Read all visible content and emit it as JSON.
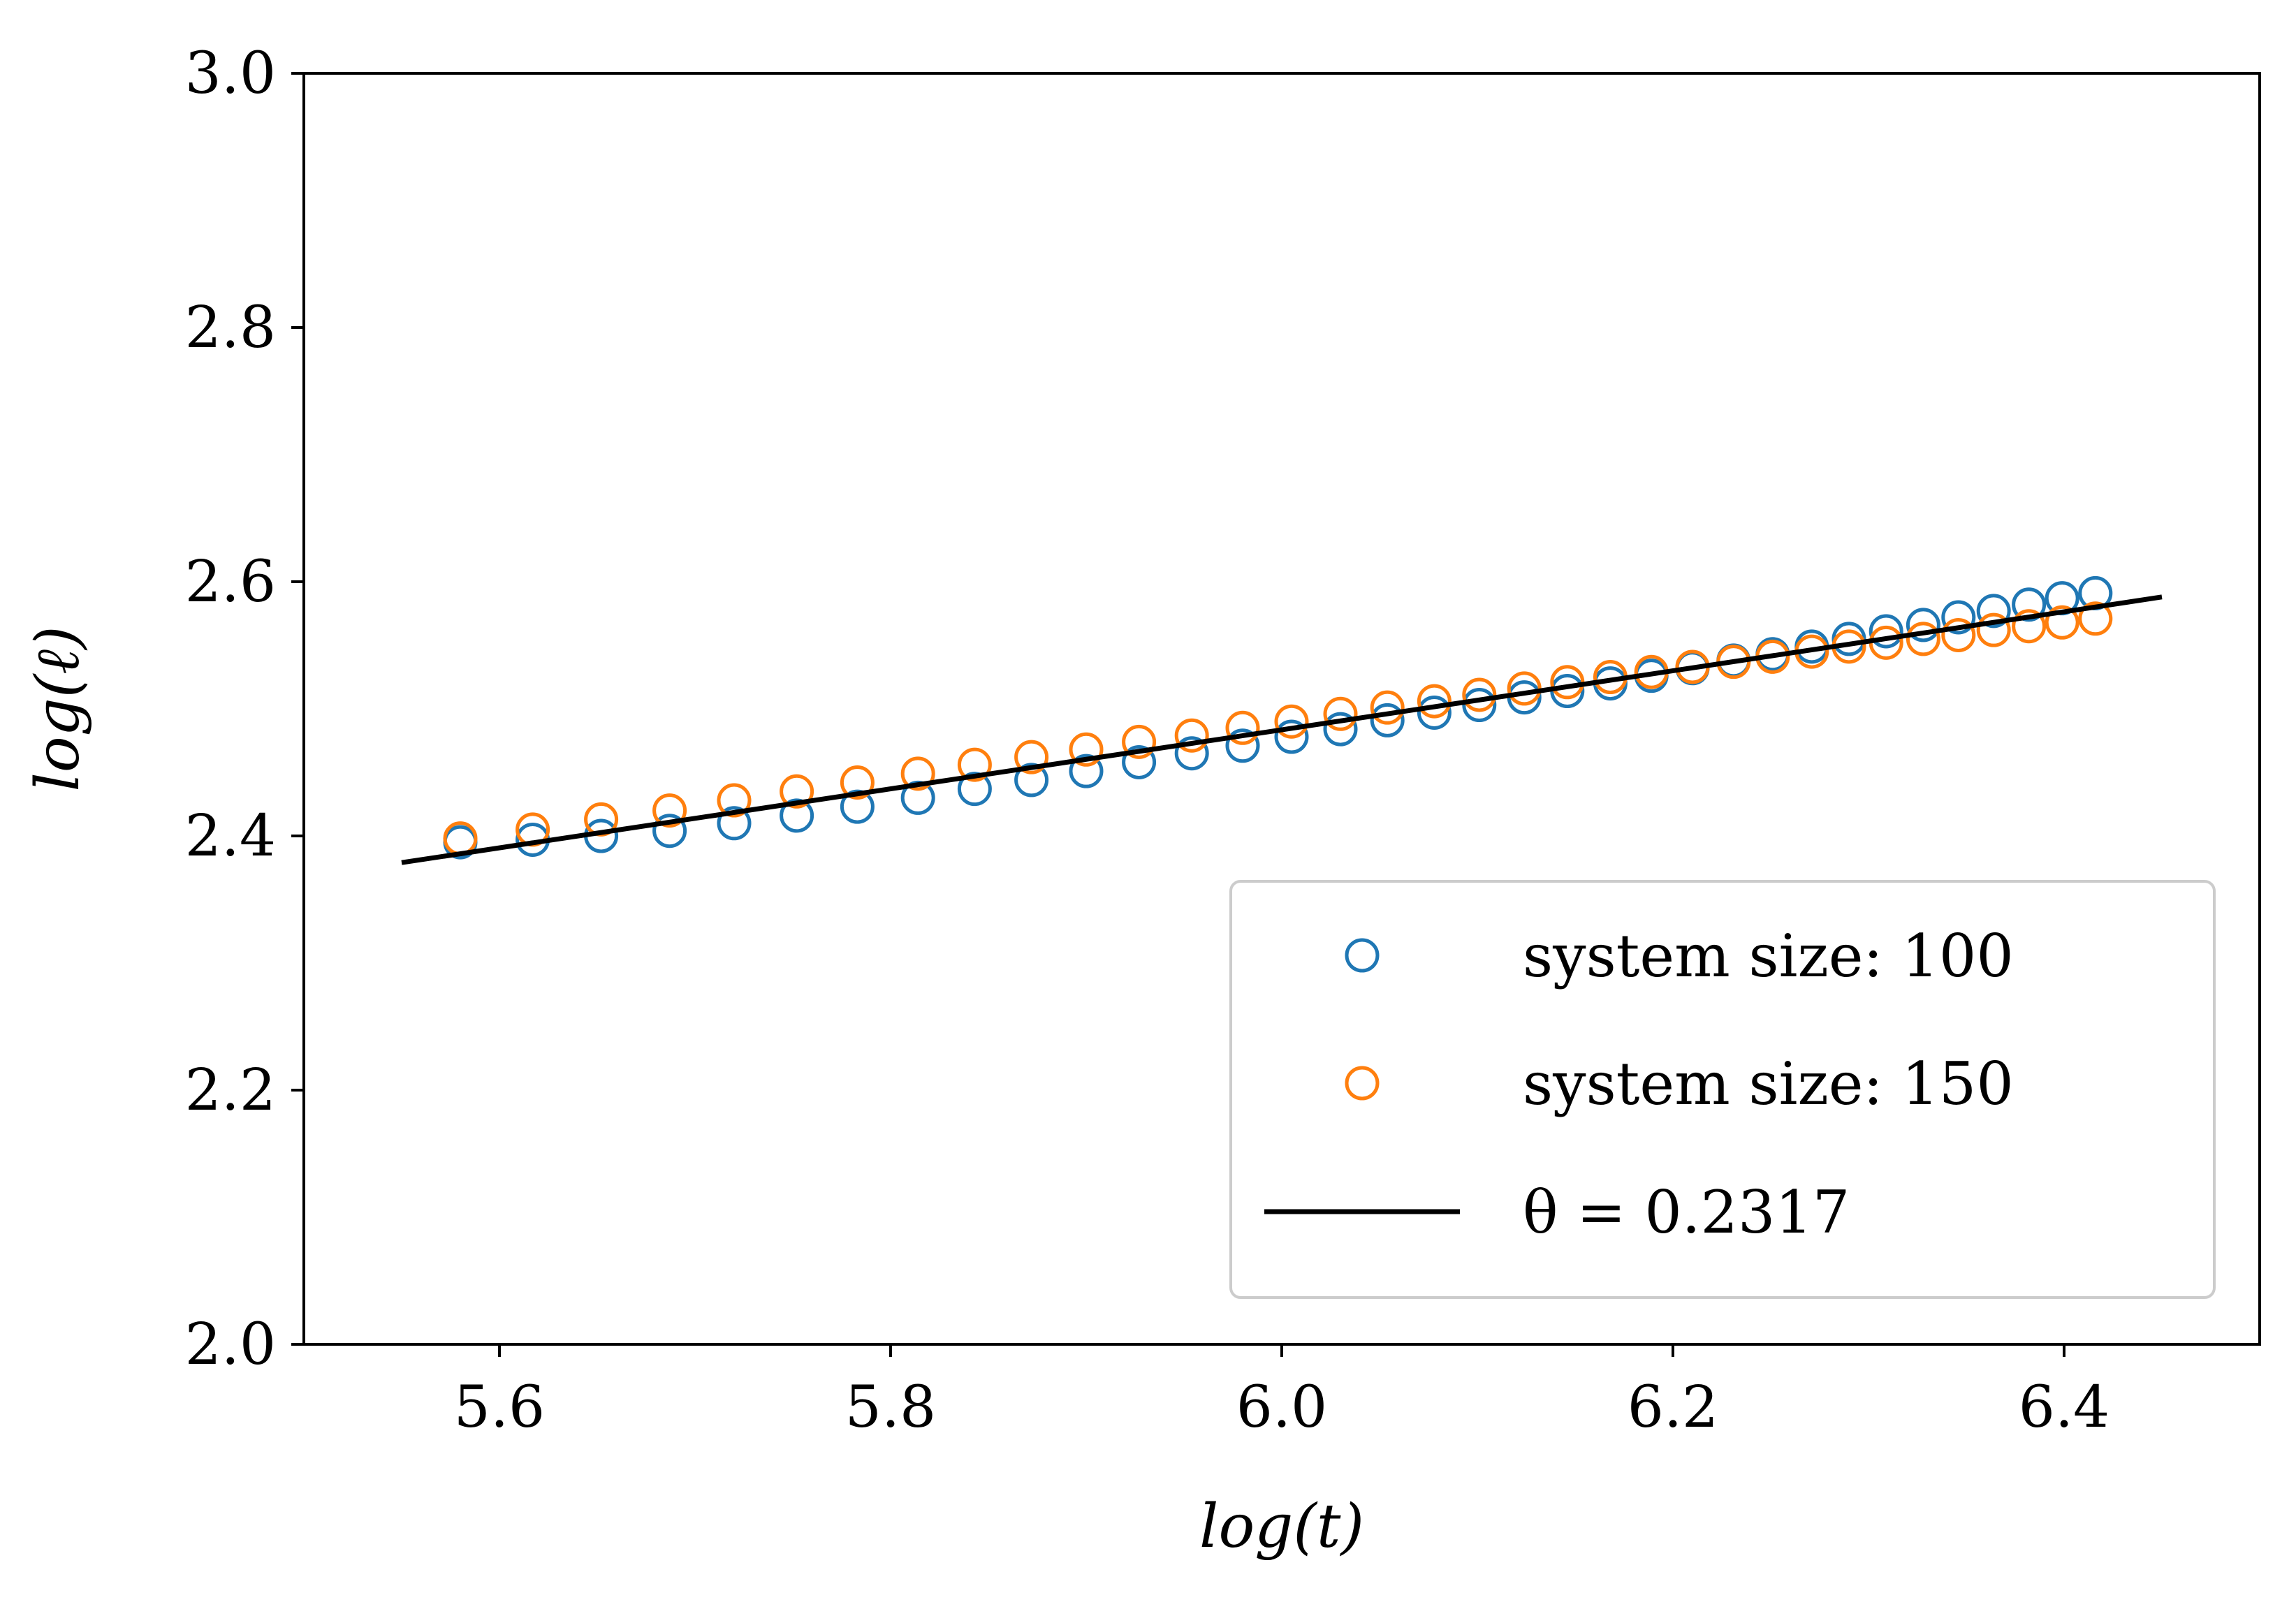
{
  "chart_data": {
    "type": "scatter",
    "title": "",
    "xlabel": "log(t)",
    "ylabel": "log(ℓ)",
    "xlim": [
      5.5,
      6.5
    ],
    "ylim": [
      2.0,
      3.0
    ],
    "xticks": [
      5.6,
      5.8,
      6.0,
      6.2,
      6.4
    ],
    "xtick_labels": [
      "5.6",
      "5.8",
      "6.0",
      "6.2",
      "6.4"
    ],
    "yticks": [
      2.0,
      2.2,
      2.4,
      2.6,
      2.8,
      3.0
    ],
    "ytick_labels": [
      "2.0",
      "2.2",
      "2.4",
      "2.6",
      "2.8",
      "3.0"
    ],
    "grid": false,
    "legend_position": "lower-right",
    "series": [
      {
        "name": "system size: 100",
        "label": "system size: 100",
        "color": "#1f77b4",
        "marker": "open-circle",
        "x": [
          5.58,
          5.617,
          5.652,
          5.687,
          5.72,
          5.752,
          5.783,
          5.814,
          5.843,
          5.872,
          5.9,
          5.927,
          5.954,
          5.98,
          6.005,
          6.03,
          6.054,
          6.078,
          6.101,
          6.124,
          6.146,
          6.168,
          6.189,
          6.21,
          6.231,
          6.251,
          6.271,
          6.29,
          6.309,
          6.328,
          6.346,
          6.364,
          6.382,
          6.399,
          6.416
        ],
        "y": [
          2.395,
          2.397,
          2.4,
          2.404,
          2.41,
          2.416,
          2.423,
          2.43,
          2.437,
          2.444,
          2.451,
          2.458,
          2.465,
          2.471,
          2.478,
          2.484,
          2.491,
          2.497,
          2.503,
          2.509,
          2.514,
          2.52,
          2.526,
          2.532,
          2.538,
          2.543,
          2.549,
          2.555,
          2.561,
          2.566,
          2.572,
          2.577,
          2.582,
          2.587,
          2.591
        ]
      },
      {
        "name": "system size: 150",
        "label": "system size: 150",
        "color": "#ff7f0e",
        "marker": "open-circle",
        "x": [
          5.58,
          5.617,
          5.652,
          5.687,
          5.72,
          5.752,
          5.783,
          5.814,
          5.843,
          5.872,
          5.9,
          5.927,
          5.954,
          5.98,
          6.005,
          6.03,
          6.054,
          6.078,
          6.101,
          6.124,
          6.146,
          6.168,
          6.189,
          6.21,
          6.231,
          6.251,
          6.271,
          6.29,
          6.309,
          6.328,
          6.346,
          6.364,
          6.382,
          6.399,
          6.416
        ],
        "y": [
          2.398,
          2.405,
          2.413,
          2.42,
          2.428,
          2.435,
          2.442,
          2.449,
          2.456,
          2.462,
          2.468,
          2.474,
          2.479,
          2.485,
          2.49,
          2.496,
          2.501,
          2.506,
          2.511,
          2.516,
          2.521,
          2.525,
          2.529,
          2.533,
          2.537,
          2.541,
          2.545,
          2.549,
          2.552,
          2.555,
          2.558,
          2.562,
          2.565,
          2.568,
          2.571
        ]
      }
    ],
    "fit_line": {
      "name": "θ = 0.2317",
      "label": "θ = 0.2317",
      "color": "#000000",
      "slope": 0.2317,
      "x": [
        5.55,
        6.45
      ],
      "y": [
        2.379,
        2.588
      ]
    }
  }
}
